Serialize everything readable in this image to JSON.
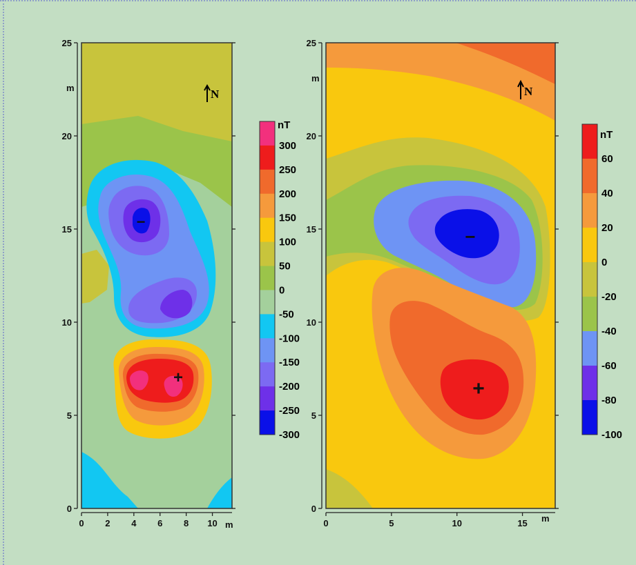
{
  "chart_data": [
    {
      "type": "heatmap",
      "x_unit": "m",
      "y_unit": "m",
      "xlim": [
        0,
        11.5
      ],
      "ylim": [
        0,
        25
      ],
      "x_ticks": [
        "0",
        "2",
        "4",
        "6",
        "8",
        "10"
      ],
      "y_ticks": [
        "0",
        "5",
        "10",
        "15",
        "20",
        "25"
      ],
      "north_label": "N",
      "colorbar": {
        "unit": "nT",
        "labels": [
          "300",
          "250",
          "200",
          "150",
          "100",
          "50",
          "0",
          "-50",
          "-100",
          "-150",
          "-200",
          "-250",
          "-300"
        ],
        "colors": [
          "#f2307d",
          "#ee1c1c",
          "#f06a2c",
          "#f59a3c",
          "#f9c80e",
          "#c8c43c",
          "#9bc44a",
          "#a4d09c",
          "#12c7f2",
          "#6e94f4",
          "#7c6af2",
          "#6e30e8",
          "#0a10e8"
        ]
      },
      "markers": [
        {
          "symbol": "−",
          "x": 4.5,
          "y": 15.3
        },
        {
          "symbol": "+",
          "x": 7.4,
          "y": 7.1
        }
      ],
      "background_level": "50",
      "anomalies": [
        {
          "x": 4.5,
          "y": 15.3,
          "level": "-300"
        },
        {
          "x": 7.0,
          "y": 10.8,
          "level": "-200"
        },
        {
          "x": 7.4,
          "y": 7.1,
          "level": "300"
        },
        {
          "x": 4.5,
          "y": 7.0,
          "level": "300"
        }
      ]
    },
    {
      "type": "heatmap",
      "x_unit": "m",
      "y_unit": "m",
      "xlim": [
        0,
        17.5
      ],
      "ylim": [
        0,
        25
      ],
      "x_ticks": [
        "0",
        "5",
        "10",
        "15"
      ],
      "y_ticks": [
        "0",
        "5",
        "10",
        "15",
        "20",
        "25"
      ],
      "north_label": "N",
      "colorbar": {
        "unit": "nT",
        "labels": [
          "60",
          "40",
          "20",
          "0",
          "-20",
          "-40",
          "-60",
          "-80",
          "-100"
        ],
        "colors": [
          "#ee1c1c",
          "#f06a2c",
          "#f59a3c",
          "#f9c80e",
          "#c8c43c",
          "#9bc44a",
          "#6e94f4",
          "#6e30e8",
          "#0a10e8"
        ]
      },
      "markers": [
        {
          "symbol": "−",
          "x": 11.0,
          "y": 14.6
        },
        {
          "symbol": "+",
          "x": 11.7,
          "y": 6.5
        }
      ],
      "background_level": "0",
      "anomalies": [
        {
          "x": 11.0,
          "y": 14.6,
          "level": "-100"
        },
        {
          "x": 11.7,
          "y": 6.5,
          "level": "60"
        }
      ]
    }
  ]
}
